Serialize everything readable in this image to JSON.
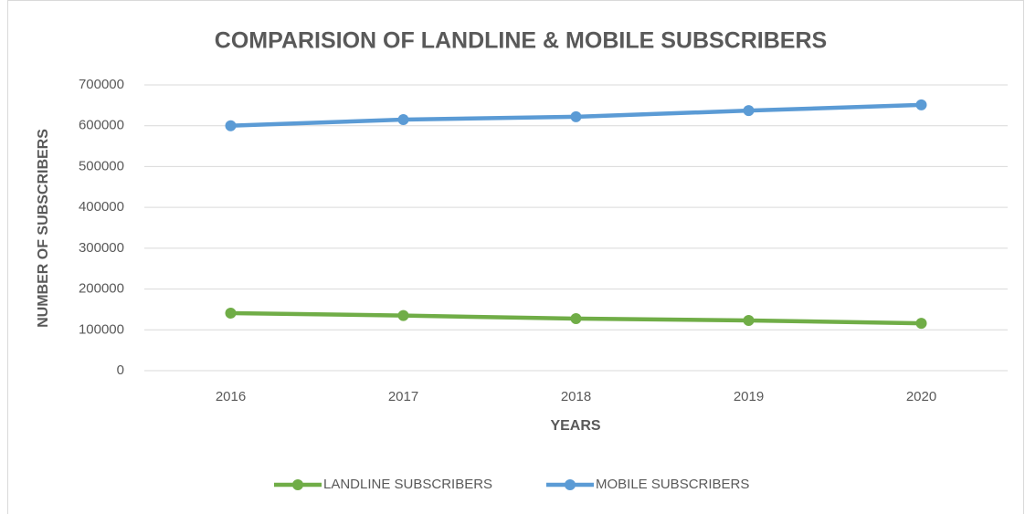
{
  "chart_data": {
    "type": "line",
    "title": "COMPARISION OF LANDLINE & MOBILE SUBSCRIBERS",
    "x_label": "YEARS",
    "y_label": "NUMBER OF  SUBSCRIBERS",
    "categories": [
      "2016",
      "2017",
      "2018",
      "2019",
      "2020"
    ],
    "series": [
      {
        "name": "LANDLINE SUBSCRIBERS",
        "color": "#70ad47",
        "values": [
          141000,
          135000,
          127500,
          123000,
          116000
        ]
      },
      {
        "name": "MOBILE SUBSCRIBERS",
        "color": "#5b9bd5",
        "values": [
          600000,
          615000,
          622000,
          637000,
          651000
        ]
      }
    ],
    "ylim": [
      0,
      700000
    ],
    "yticks": [
      0,
      100000,
      200000,
      300000,
      400000,
      500000,
      600000,
      700000
    ],
    "grid": true,
    "legend": "bottom"
  }
}
